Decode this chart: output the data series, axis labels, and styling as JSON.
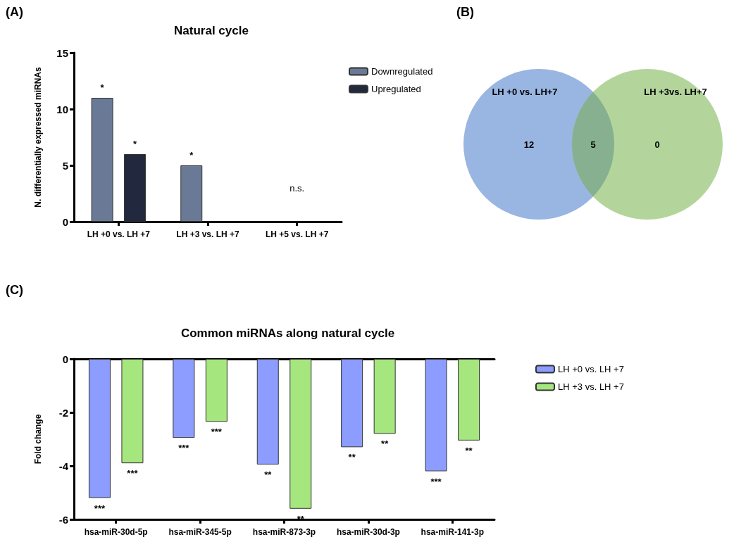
{
  "chart_data": [
    {
      "type": "bar",
      "title": "Natural cycle",
      "ylabel": "N. differentially expressed miRNAs",
      "annotations": [
        "(A)",
        "n.s."
      ],
      "categories": [
        "LH +0 vs. LH +7",
        "LH +3 vs. LH +7",
        "LH +5 vs. LH +7"
      ],
      "series": [
        {
          "name": "Downregulated",
          "color": "#6a7a96",
          "values": [
            11,
            5,
            0
          ],
          "value_labels": [
            "*",
            "*",
            null
          ]
        },
        {
          "name": "Upregulated",
          "color": "#22283d",
          "values": [
            6,
            0,
            0
          ],
          "value_labels": [
            "*",
            null,
            null
          ]
        }
      ],
      "ylim": [
        0,
        15
      ],
      "yticks": [
        0,
        5,
        10,
        15
      ],
      "grid": false,
      "legend": "top right"
    },
    {
      "type": "other",
      "annotations": [
        "(B)",
        "LH +0 vs. LH+7",
        "LH +3vs. LH+7"
      ],
      "categories": [
        null,
        null,
        null
      ],
      "values": [
        12,
        5,
        0
      ],
      "colors": [
        "#99b5e1",
        "#86b08f",
        "#b3d59c"
      ],
      "data_labels": true
    },
    {
      "type": "bar",
      "title": "Common miRNAs along natural cycle",
      "ylabel": "Fold change",
      "annotations": [
        "(C)"
      ],
      "categories": [
        "hsa-miR-30d-5p",
        "hsa-miR-345-5p",
        "hsa-miR-873-3p",
        "hsa-miR-30d-3p",
        "hsa-miR-141-3p"
      ],
      "series": [
        {
          "name": "LH +0 vs. LH +7",
          "color": "#8c9cff",
          "values": [
            -5.2,
            -2.95,
            -3.95,
            -3.3,
            -4.2
          ],
          "value_labels": [
            "***",
            "***",
            "**",
            "**",
            "***"
          ]
        },
        {
          "name": "LH +3 vs. LH +7",
          "color": "#a6e67e",
          "values": [
            -3.9,
            -2.35,
            -5.6,
            -2.8,
            -3.05
          ],
          "value_labels": [
            "***",
            "***",
            "**",
            "**",
            "**"
          ]
        }
      ],
      "ylim": [
        -6,
        0
      ],
      "yticks": [
        -6,
        -4,
        -2,
        0
      ],
      "grid": false,
      "legend": "top right"
    }
  ]
}
